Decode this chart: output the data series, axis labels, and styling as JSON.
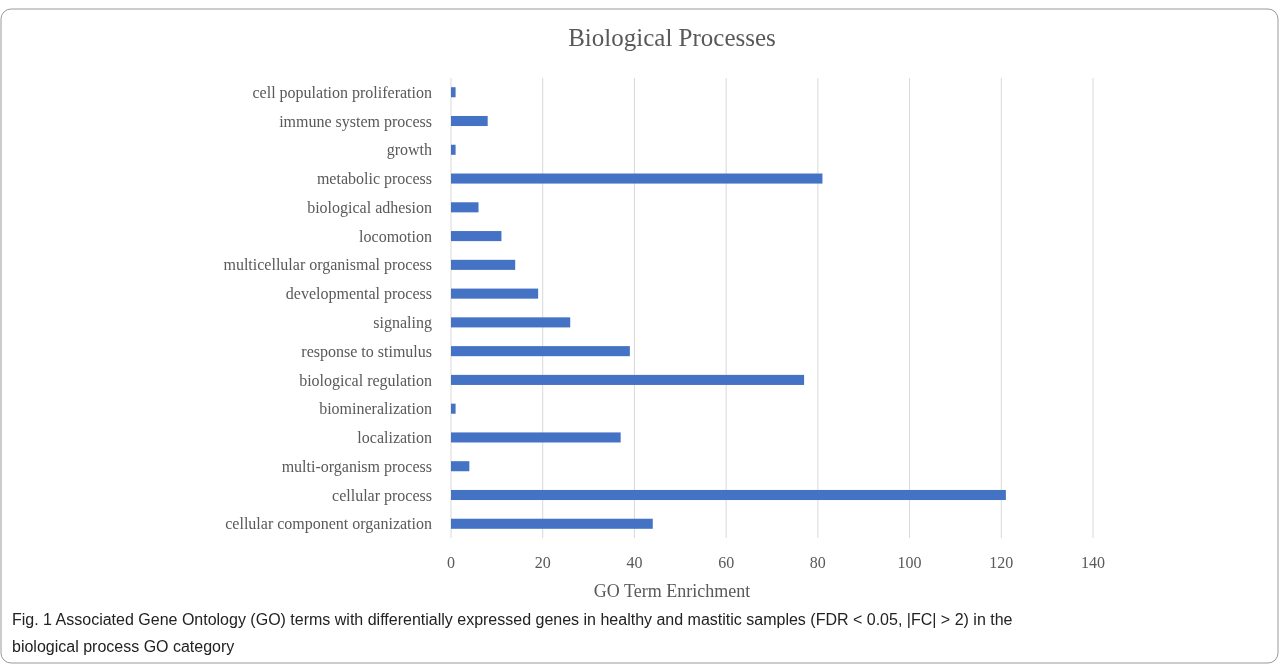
{
  "chart_data": {
    "type": "bar",
    "orientation": "horizontal",
    "title": "Biological Processes",
    "xlabel": "GO Term Enrichment",
    "categories": [
      "cell population proliferation",
      "immune system process",
      "growth",
      "metabolic process",
      "biological adhesion",
      "locomotion",
      "multicellular organismal process",
      "developmental process",
      "signaling",
      "response to stimulus",
      "biological regulation",
      "biomineralization",
      "localization",
      "multi-organism process",
      "cellular process",
      "cellular component organization"
    ],
    "values": [
      1,
      8,
      1,
      81,
      6,
      11,
      14,
      19,
      26,
      39,
      77,
      1,
      37,
      4,
      121,
      44
    ],
    "color": "#4472c4",
    "xlim": [
      0,
      140
    ],
    "xticks": [
      0,
      20,
      40,
      60,
      80,
      100,
      120,
      140
    ],
    "grid": "x",
    "annotations": [
      "Fig. 1  Associated Gene Ontology (GO) terms with differentially expressed genes in healthy and mastitic samples (FDR < 0.05, |FC| > 2) in the biological process GO category"
    ]
  }
}
